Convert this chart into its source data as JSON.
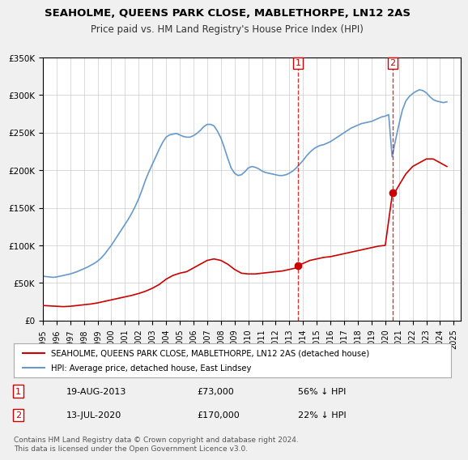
{
  "title": "SEAHOLME, QUEENS PARK CLOSE, MABLETHORPE, LN12 2AS",
  "subtitle": "Price paid vs. HM Land Registry's House Price Index (HPI)",
  "footer": "Contains HM Land Registry data © Crown copyright and database right 2024.\nThis data is licensed under the Open Government Licence v3.0.",
  "legend_property": "SEAHOLME, QUEENS PARK CLOSE, MABLETHORPE, LN12 2AS (detached house)",
  "legend_hpi": "HPI: Average price, detached house, East Lindsey",
  "transaction1_date": "19-AUG-2013",
  "transaction1_price": "£73,000",
  "transaction1_hpi": "56% ↓ HPI",
  "transaction1_year": 2013.63,
  "transaction1_value": 73000,
  "transaction2_date": "13-JUL-2020",
  "transaction2_price": "£170,000",
  "transaction2_hpi": "22% ↓ HPI",
  "transaction2_year": 2020.53,
  "transaction2_value": 170000,
  "background_color": "#f0f0f0",
  "plot_background": "#ffffff",
  "red_color": "#cc0000",
  "blue_color": "#6699cc",
  "ylim": [
    0,
    350000
  ],
  "xlim_start": 1995,
  "xlim_end": 2025.5,
  "hpi_x": [
    1995.0,
    1995.25,
    1995.5,
    1995.75,
    1996.0,
    1996.25,
    1996.5,
    1996.75,
    1997.0,
    1997.25,
    1997.5,
    1997.75,
    1998.0,
    1998.25,
    1998.5,
    1998.75,
    1999.0,
    1999.25,
    1999.5,
    1999.75,
    2000.0,
    2000.25,
    2000.5,
    2000.75,
    2001.0,
    2001.25,
    2001.5,
    2001.75,
    2002.0,
    2002.25,
    2002.5,
    2002.75,
    2003.0,
    2003.25,
    2003.5,
    2003.75,
    2004.0,
    2004.25,
    2004.5,
    2004.75,
    2005.0,
    2005.25,
    2005.5,
    2005.75,
    2006.0,
    2006.25,
    2006.5,
    2006.75,
    2007.0,
    2007.25,
    2007.5,
    2007.75,
    2008.0,
    2008.25,
    2008.5,
    2008.75,
    2009.0,
    2009.25,
    2009.5,
    2009.75,
    2010.0,
    2010.25,
    2010.5,
    2010.75,
    2011.0,
    2011.25,
    2011.5,
    2011.75,
    2012.0,
    2012.25,
    2012.5,
    2012.75,
    2013.0,
    2013.25,
    2013.5,
    2013.75,
    2014.0,
    2014.25,
    2014.5,
    2014.75,
    2015.0,
    2015.25,
    2015.5,
    2015.75,
    2016.0,
    2016.25,
    2016.5,
    2016.75,
    2017.0,
    2017.25,
    2017.5,
    2017.75,
    2018.0,
    2018.25,
    2018.5,
    2018.75,
    2019.0,
    2019.25,
    2019.5,
    2019.75,
    2020.0,
    2020.25,
    2020.5,
    2020.75,
    2021.0,
    2021.25,
    2021.5,
    2021.75,
    2022.0,
    2022.25,
    2022.5,
    2022.75,
    2023.0,
    2023.25,
    2023.5,
    2023.75,
    2024.0,
    2024.25,
    2024.5
  ],
  "hpi_y": [
    59000,
    58500,
    58000,
    57500,
    58000,
    59000,
    60000,
    61000,
    62000,
    63500,
    65000,
    67000,
    69000,
    71000,
    73500,
    76000,
    79000,
    83000,
    88000,
    94000,
    100000,
    107000,
    114000,
    121000,
    128000,
    135000,
    143000,
    152000,
    162000,
    174000,
    187000,
    198000,
    208000,
    218000,
    228000,
    237000,
    244000,
    247000,
    248000,
    249000,
    247000,
    245000,
    244000,
    244000,
    246000,
    249000,
    253000,
    258000,
    261000,
    261000,
    259000,
    252000,
    243000,
    230000,
    216000,
    203000,
    196000,
    193000,
    194000,
    198000,
    203000,
    205000,
    204000,
    202000,
    199000,
    197000,
    196000,
    195000,
    194000,
    193000,
    193000,
    194000,
    196000,
    199000,
    203000,
    208000,
    213000,
    219000,
    224000,
    228000,
    231000,
    233000,
    234000,
    236000,
    238000,
    241000,
    244000,
    247000,
    250000,
    253000,
    256000,
    258000,
    260000,
    262000,
    263000,
    264000,
    265000,
    267000,
    269000,
    271000,
    272000,
    274000,
    218000,
    240000,
    261000,
    280000,
    292000,
    298000,
    302000,
    305000,
    307000,
    306000,
    303000,
    298000,
    294000,
    292000,
    291000,
    290000,
    291000
  ],
  "red_x": [
    1995.0,
    1995.5,
    1996.0,
    1996.5,
    1997.0,
    1997.5,
    1998.0,
    1998.5,
    1999.0,
    1999.5,
    2000.0,
    2000.5,
    2001.0,
    2001.5,
    2002.0,
    2002.5,
    2003.0,
    2003.5,
    2004.0,
    2004.5,
    2005.0,
    2005.5,
    2006.0,
    2006.5,
    2007.0,
    2007.5,
    2008.0,
    2008.5,
    2009.0,
    2009.5,
    2010.0,
    2010.5,
    2011.0,
    2011.5,
    2012.0,
    2012.5,
    2013.0,
    2013.5,
    2013.63,
    2014.0,
    2014.5,
    2015.0,
    2015.5,
    2016.0,
    2016.5,
    2017.0,
    2017.5,
    2018.0,
    2018.5,
    2019.0,
    2019.5,
    2020.0,
    2020.53,
    2020.75,
    2021.0,
    2021.5,
    2022.0,
    2022.5,
    2023.0,
    2023.5,
    2024.0,
    2024.5
  ],
  "red_y": [
    20000,
    19500,
    19000,
    18500,
    19000,
    20000,
    21000,
    22000,
    23500,
    25500,
    27500,
    29500,
    31500,
    33500,
    36000,
    39000,
    43000,
    48000,
    55000,
    60000,
    63000,
    65000,
    70000,
    75000,
    80000,
    82000,
    80000,
    75000,
    68000,
    63000,
    62000,
    62000,
    63000,
    64000,
    65000,
    66000,
    68000,
    70000,
    73000,
    76000,
    80000,
    82000,
    84000,
    85000,
    87000,
    89000,
    91000,
    93000,
    95000,
    97000,
    99000,
    100000,
    170000,
    172000,
    180000,
    195000,
    205000,
    210000,
    215000,
    215000,
    210000,
    205000
  ]
}
